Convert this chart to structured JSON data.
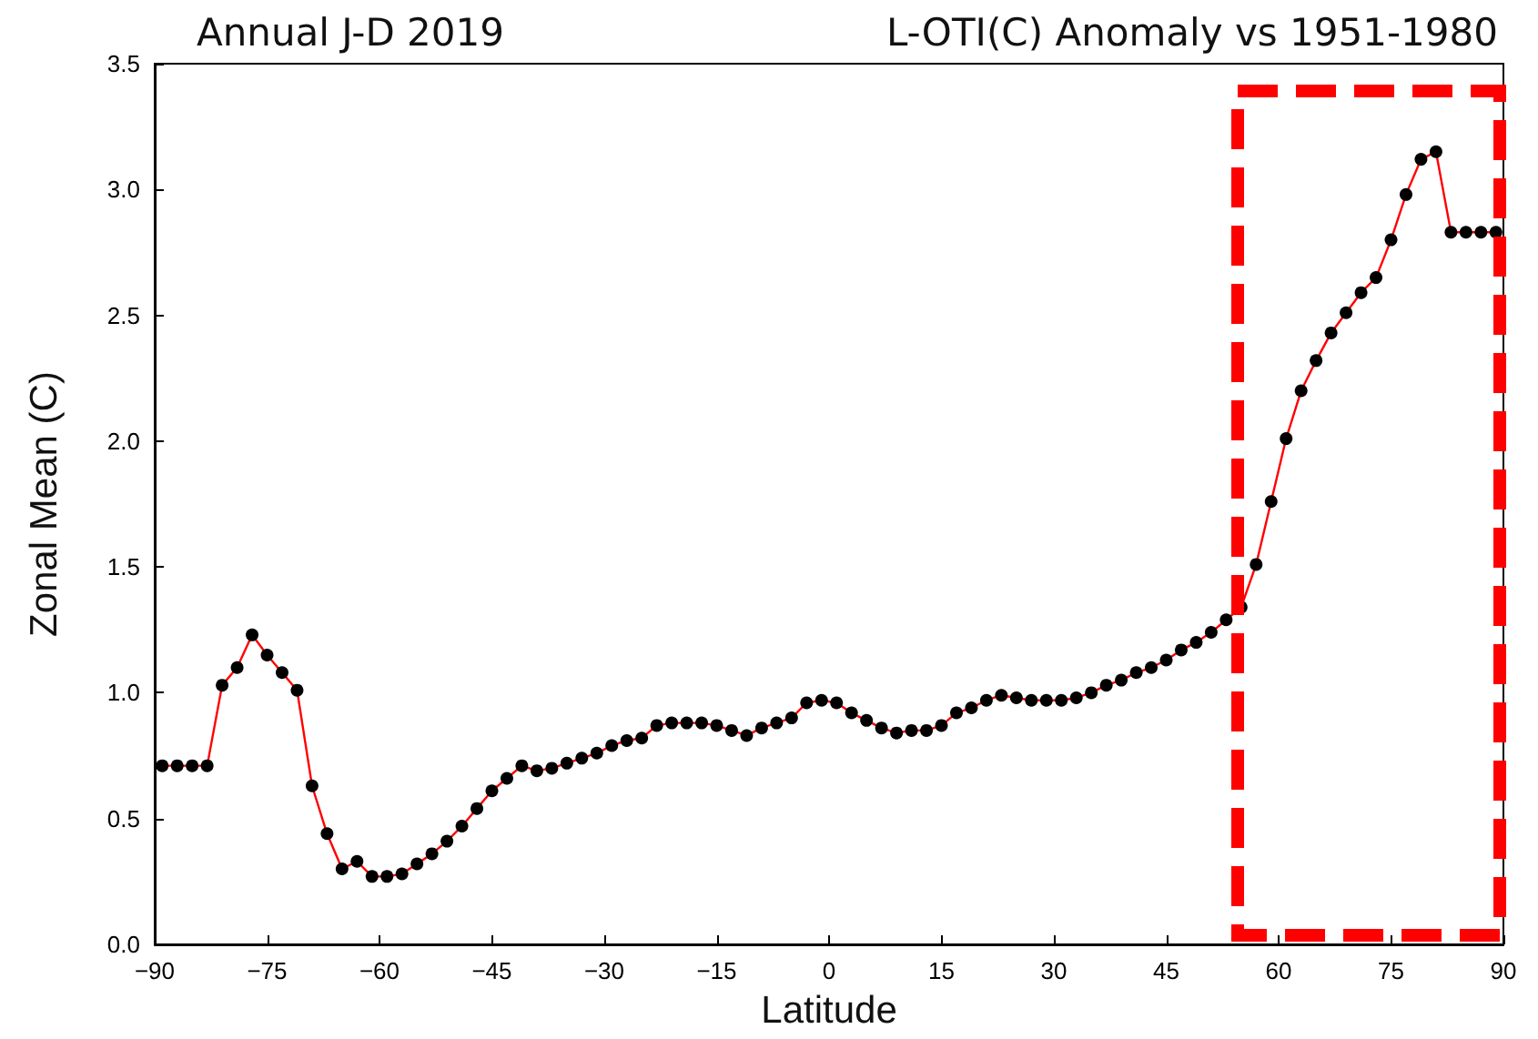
{
  "chart_data": {
    "type": "line",
    "title": "Annual J-D 2019",
    "subtitle": "L-OTI(C) Anomaly vs 1951-1980",
    "xlabel": "Latitude",
    "ylabel": "Zonal Mean (C)",
    "x": [
      -89,
      -87,
      -85,
      -83,
      -81,
      -79,
      -77,
      -75,
      -73,
      -71,
      -69,
      -67,
      -65,
      -63,
      -61,
      -59,
      -57,
      -55,
      -53,
      -51,
      -49,
      -47,
      -45,
      -43,
      -41,
      -39,
      -37,
      -35,
      -33,
      -31,
      -29,
      -27,
      -25,
      -23,
      -21,
      -19,
      -17,
      -15,
      -13,
      -11,
      -9,
      -7,
      -5,
      -3,
      -1,
      1,
      3,
      5,
      7,
      9,
      11,
      13,
      15,
      17,
      19,
      21,
      23,
      25,
      27,
      29,
      31,
      33,
      35,
      37,
      39,
      41,
      43,
      45,
      47,
      49,
      51,
      53,
      55,
      57,
      59,
      61,
      63,
      65,
      67,
      69,
      71,
      73,
      75,
      77,
      79,
      81,
      83,
      85,
      87,
      89
    ],
    "series": [
      {
        "color": "#ff0000",
        "values": [
          0.71,
          0.71,
          0.71,
          0.71,
          1.03,
          1.1,
          1.23,
          1.15,
          1.08,
          1.01,
          0.63,
          0.44,
          0.3,
          0.33,
          0.27,
          0.27,
          0.28,
          0.32,
          0.36,
          0.41,
          0.47,
          0.54,
          0.61,
          0.66,
          0.71,
          0.69,
          0.7,
          0.72,
          0.74,
          0.76,
          0.79,
          0.81,
          0.82,
          0.87,
          0.88,
          0.88,
          0.88,
          0.87,
          0.85,
          0.83,
          0.86,
          0.88,
          0.9,
          0.96,
          0.97,
          0.96,
          0.92,
          0.89,
          0.86,
          0.84,
          0.85,
          0.85,
          0.87,
          0.92,
          0.94,
          0.97,
          0.99,
          0.98,
          0.97,
          0.97,
          0.97,
          0.98,
          1.0,
          1.03,
          1.05,
          1.08,
          1.1,
          1.13,
          1.17,
          1.2,
          1.24,
          1.29,
          1.34,
          1.51,
          1.76,
          2.01,
          2.2,
          2.32,
          2.43,
          2.51,
          2.59,
          2.65,
          2.8,
          2.98,
          3.12,
          3.15,
          2.83,
          2.83,
          2.83,
          2.83
        ]
      }
    ],
    "xlim": [
      -90,
      90
    ],
    "xticks": [
      -90,
      -75,
      -60,
      -45,
      -30,
      -15,
      0,
      15,
      30,
      45,
      60,
      75,
      90
    ],
    "ylim": [
      0,
      3.5
    ],
    "yticks": [
      {
        "value": 0,
        "label": "0.0"
      },
      0.5,
      {
        "value": 1,
        "label": "1.0"
      },
      1.5,
      {
        "value": 2,
        "label": "2.0"
      },
      2.5,
      {
        "value": 3,
        "label": "3.0"
      },
      3.5
    ],
    "marker": "circle",
    "line_style": "solid"
  }
}
